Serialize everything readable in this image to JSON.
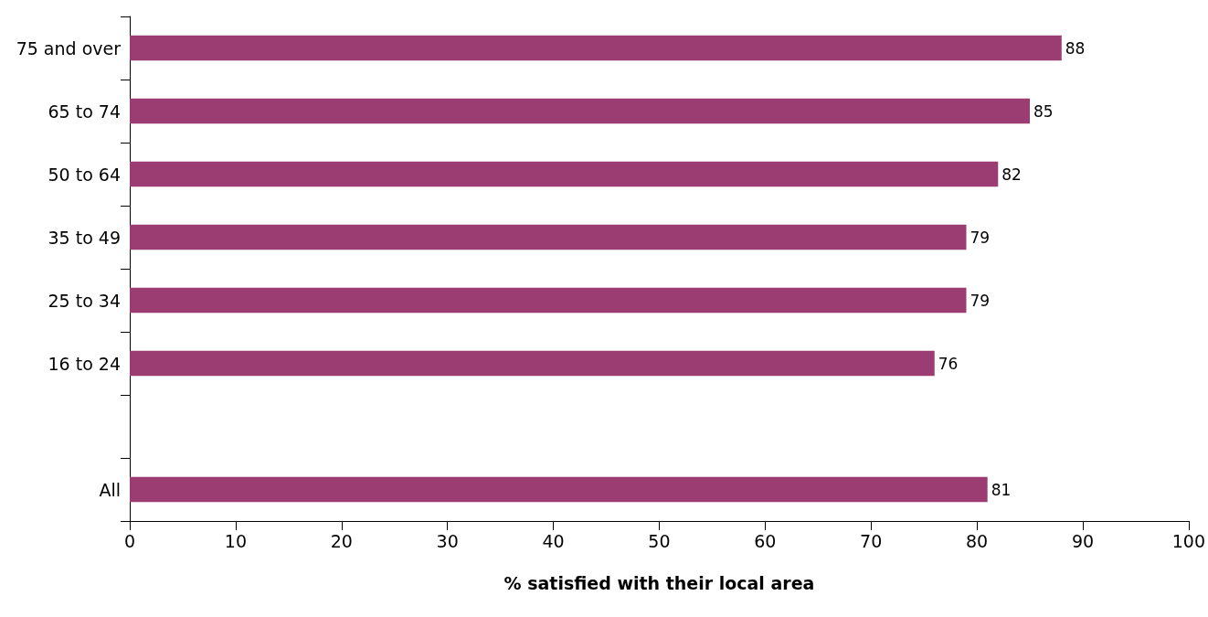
{
  "chart_data": {
    "type": "bar",
    "orientation": "horizontal",
    "xlabel": "% satisfied with their local area",
    "categories": [
      "75 and over",
      "65 to 74",
      "50 to 64",
      "35 to 49",
      "25 to 34",
      "16 to 24",
      null,
      "All"
    ],
    "values": [
      88,
      85,
      82,
      79,
      79,
      76,
      null,
      81
    ],
    "color": "#9b3d72",
    "xlim": [
      0,
      100
    ],
    "xticks": [
      0,
      10,
      20,
      30,
      40,
      50,
      60,
      70,
      80,
      90,
      100
    ],
    "data_labels": true,
    "grid": false
  }
}
